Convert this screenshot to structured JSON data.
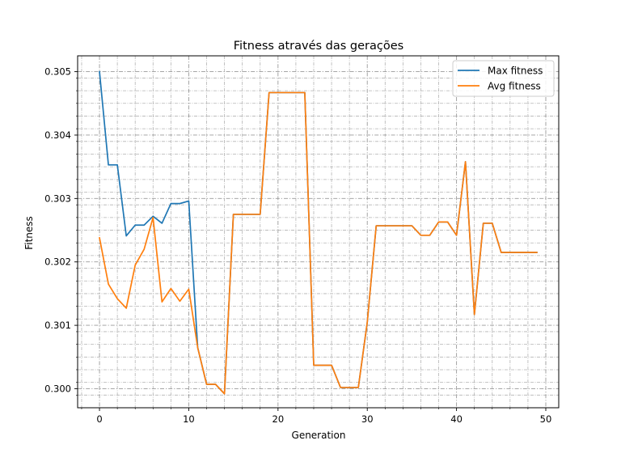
{
  "chart_data": {
    "type": "line",
    "title": "Fitness através das gerações",
    "xlabel": "Generation",
    "ylabel": "Fitness",
    "xlim": [
      -2.45,
      51.45
    ],
    "ylim": [
      0.2997,
      0.30525
    ],
    "xticks": [
      0,
      10,
      20,
      30,
      40,
      50
    ],
    "yticks": [
      0.3,
      0.301,
      0.302,
      0.303,
      0.304,
      0.305
    ],
    "xtick_labels": [
      "0",
      "10",
      "20",
      "30",
      "40",
      "50"
    ],
    "ytick_labels": [
      "0.300",
      "0.301",
      "0.302",
      "0.303",
      "0.304",
      "0.305"
    ],
    "grid": true,
    "minor_grid": true,
    "legend_position": "top-right",
    "x": [
      0,
      1,
      2,
      3,
      4,
      5,
      6,
      7,
      8,
      9,
      10,
      11,
      12,
      13,
      14,
      15,
      16,
      17,
      18,
      19,
      20,
      21,
      22,
      23,
      24,
      25,
      26,
      27,
      28,
      29,
      30,
      31,
      32,
      33,
      34,
      35,
      36,
      37,
      38,
      39,
      40,
      41,
      42,
      43,
      44,
      45,
      46,
      47,
      48,
      49
    ],
    "series": [
      {
        "name": "Max fitness",
        "color": "#1f77b4",
        "values": [
          0.305,
          0.30353,
          0.30353,
          0.30241,
          0.30258,
          0.30258,
          0.30272,
          0.30261,
          0.30292,
          0.30292,
          0.30296,
          0.30065,
          0.30007,
          0.30007,
          0.29992,
          0.30275,
          0.30275,
          0.30275,
          0.30275,
          0.30467,
          0.30467,
          0.30467,
          0.30467,
          0.30467,
          0.30037,
          0.30037,
          0.30037,
          0.30002,
          0.30002,
          0.30002,
          0.30105,
          0.30257,
          0.30257,
          0.30257,
          0.30257,
          0.30257,
          0.30242,
          0.30242,
          0.30263,
          0.30263,
          0.30242,
          0.30358,
          0.30117,
          0.30261,
          0.30261,
          0.30215,
          0.30215,
          0.30215,
          0.30215,
          0.30215
        ]
      },
      {
        "name": "Avg fitness",
        "color": "#ff7f0e",
        "values": [
          0.30238,
          0.30165,
          0.30142,
          0.30127,
          0.30195,
          0.3022,
          0.3027,
          0.30137,
          0.30158,
          0.30138,
          0.30157,
          0.30065,
          0.30007,
          0.30007,
          0.29992,
          0.30275,
          0.30275,
          0.30275,
          0.30275,
          0.30467,
          0.30467,
          0.30467,
          0.30467,
          0.30467,
          0.30037,
          0.30037,
          0.30037,
          0.30002,
          0.30002,
          0.30002,
          0.30105,
          0.30257,
          0.30257,
          0.30257,
          0.30257,
          0.30257,
          0.30242,
          0.30242,
          0.30263,
          0.30263,
          0.30242,
          0.30358,
          0.30117,
          0.30261,
          0.30261,
          0.30215,
          0.30215,
          0.30215,
          0.30215,
          0.30215
        ]
      }
    ]
  }
}
